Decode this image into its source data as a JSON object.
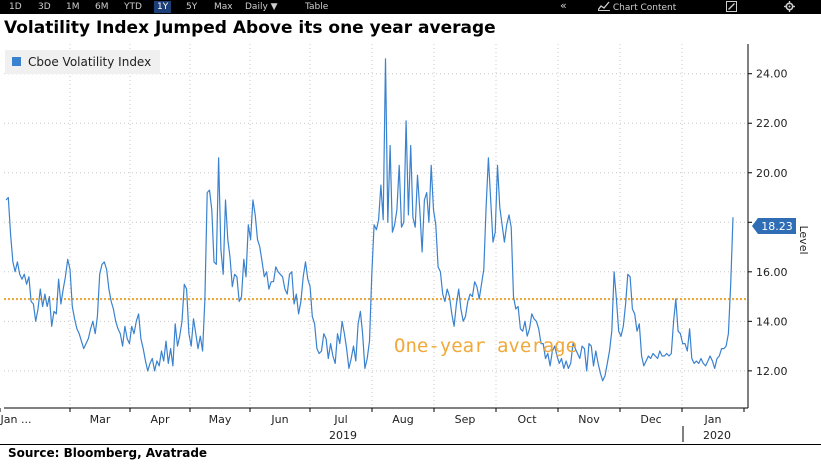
{
  "toolbar": {
    "ranges": [
      "1D",
      "3D",
      "1M",
      "6M",
      "YTD",
      "1Y",
      "5Y",
      "Max"
    ],
    "active_range": "1Y",
    "frequency": "Daily",
    "frequency_arrow": "▼",
    "table_label": "Table",
    "collapse_glyph": "«",
    "chart_content_label": "Chart Content",
    "icons": [
      "collapse-icon",
      "chart-content-icon",
      "edit-icon",
      "settings-icon"
    ]
  },
  "title": "Volatility Index Jumped Above its one year average",
  "source": "Source: Bloomberg, Avatrade",
  "annotation": "One-year average",
  "colors": {
    "line": "#3a82cf",
    "average": "#f0a93a",
    "grid": "#c8c8c8",
    "badge": "#2f6db5",
    "legend_bg": "#f0f0f0"
  },
  "chart_data": {
    "type": "line",
    "title": "Volatility Index Jumped Above its one year average",
    "xlabel": "",
    "ylabel": "Level",
    "x_tick_labels": [
      "Jan ...",
      "Mar",
      "Apr",
      "May",
      "Jun",
      "Jul",
      "Aug",
      "Sep",
      "Oct",
      "Nov",
      "Dec",
      "Jan"
    ],
    "x_year_labels": [
      "2019",
      "2020"
    ],
    "ylim": [
      10.5,
      25.2
    ],
    "y_ticks": [
      12,
      14,
      16,
      18,
      20,
      22,
      24
    ],
    "y_tick_labels": [
      "12.00",
      "14.00",
      "16.00",
      "18.00",
      "20.00",
      "22.00",
      "24.00"
    ],
    "grid": true,
    "legend_position": "top-left",
    "reference_line": {
      "label": "One-year average",
      "value": 14.9
    },
    "last_value_label": "18.23",
    "series": [
      {
        "name": "Cboe Volatility Index",
        "values": [
          18.9,
          19.0,
          17.5,
          16.4,
          16.0,
          16.4,
          15.9,
          15.7,
          15.9,
          15.5,
          15.8,
          14.8,
          14.7,
          14.0,
          14.5,
          15.3,
          14.6,
          15.1,
          14.6,
          15.0,
          13.8,
          14.4,
          14.3,
          15.7,
          14.7,
          15.3,
          15.8,
          16.5,
          16.1,
          14.6,
          14.1,
          13.7,
          13.5,
          13.2,
          12.9,
          13.1,
          13.3,
          13.7,
          14.0,
          13.5,
          14.2,
          15.9,
          16.3,
          16.4,
          16.1,
          15.3,
          14.8,
          14.5,
          14.0,
          13.7,
          13.5,
          13.0,
          13.8,
          13.3,
          13.1,
          13.8,
          13.5,
          14.0,
          14.3,
          13.3,
          12.9,
          12.4,
          12.0,
          12.3,
          12.5,
          12.0,
          12.4,
          12.2,
          12.8,
          12.4,
          13.2,
          12.3,
          12.9,
          12.2,
          13.9,
          13.0,
          13.4,
          14.0,
          15.5,
          15.3,
          13.5,
          13.0,
          14.1,
          13.5,
          12.9,
          13.4,
          12.8,
          14.9,
          19.2,
          19.3,
          18.5,
          16.4,
          16.3,
          20.6,
          16.9,
          15.9,
          18.9,
          17.3,
          16.6,
          15.4,
          15.9,
          15.8,
          14.8,
          15.0,
          16.5,
          15.8,
          17.9,
          17.3,
          18.9,
          18.3,
          17.3,
          17.0,
          16.4,
          15.8,
          16.0,
          15.3,
          15.6,
          15.6,
          16.2,
          16.0,
          15.9,
          15.8,
          15.3,
          15.1,
          15.9,
          16.0,
          14.7,
          15.1,
          14.3,
          14.8,
          15.8,
          16.4,
          15.7,
          15.4,
          14.2,
          13.9,
          12.9,
          12.7,
          12.8,
          13.5,
          13.3,
          12.5,
          13.1,
          12.6,
          12.3,
          13.5,
          13.1,
          14.0,
          13.5,
          12.9,
          12.1,
          12.5,
          13.0,
          12.4,
          13.9,
          14.4,
          13.5,
          12.1,
          12.5,
          13.2,
          15.9,
          17.9,
          17.7,
          18.1,
          19.5,
          18.1,
          24.6,
          18.0,
          21.1,
          17.6,
          17.9,
          18.5,
          20.3,
          17.8,
          18.0,
          22.1,
          18.3,
          21.1,
          18.2,
          17.8,
          19.9,
          18.5,
          16.8,
          18.9,
          19.2,
          18.0,
          20.3,
          18.5,
          17.9,
          16.2,
          16.0,
          15.1,
          14.8,
          15.3,
          15.0,
          14.3,
          13.8,
          14.7,
          15.3,
          14.5,
          14.0,
          14.2,
          14.8,
          15.1,
          15.0,
          15.6,
          15.4,
          14.9,
          15.5,
          16.1,
          18.6,
          20.6,
          18.9,
          17.2,
          17.6,
          20.3,
          18.6,
          17.9,
          17.2,
          17.9,
          18.3,
          17.8,
          15.0,
          14.5,
          14.6,
          13.7,
          13.6,
          14.0,
          13.4,
          13.7,
          14.3,
          14.1,
          14.0,
          13.7,
          13.1,
          13.1,
          12.5,
          12.7,
          12.2,
          12.8,
          13.0,
          12.6,
          12.3,
          12.5,
          12.1,
          12.4,
          12.1,
          12.3,
          13.1,
          12.9,
          12.7,
          12.5,
          13.0,
          12.9,
          12.0,
          13.1,
          13.0,
          12.2,
          12.8,
          12.3,
          11.9,
          11.6,
          11.8,
          12.3,
          12.8,
          13.6,
          16.0,
          14.9,
          13.6,
          13.4,
          13.8,
          14.7,
          15.9,
          15.8,
          14.5,
          14.3,
          13.6,
          13.9,
          12.6,
          12.2,
          12.4,
          12.6,
          12.5,
          12.7,
          12.6,
          12.5,
          12.8,
          12.6,
          12.6,
          12.7,
          12.6,
          12.7,
          14.0,
          14.9,
          13.6,
          13.5,
          13.1,
          13.1,
          12.8,
          13.7,
          12.5,
          12.3,
          12.4,
          12.3,
          12.5,
          12.3,
          12.2,
          12.4,
          12.6,
          12.4,
          12.1,
          12.5,
          12.6,
          12.9,
          12.9,
          13.0,
          13.5,
          15.5,
          18.2
        ]
      }
    ]
  }
}
